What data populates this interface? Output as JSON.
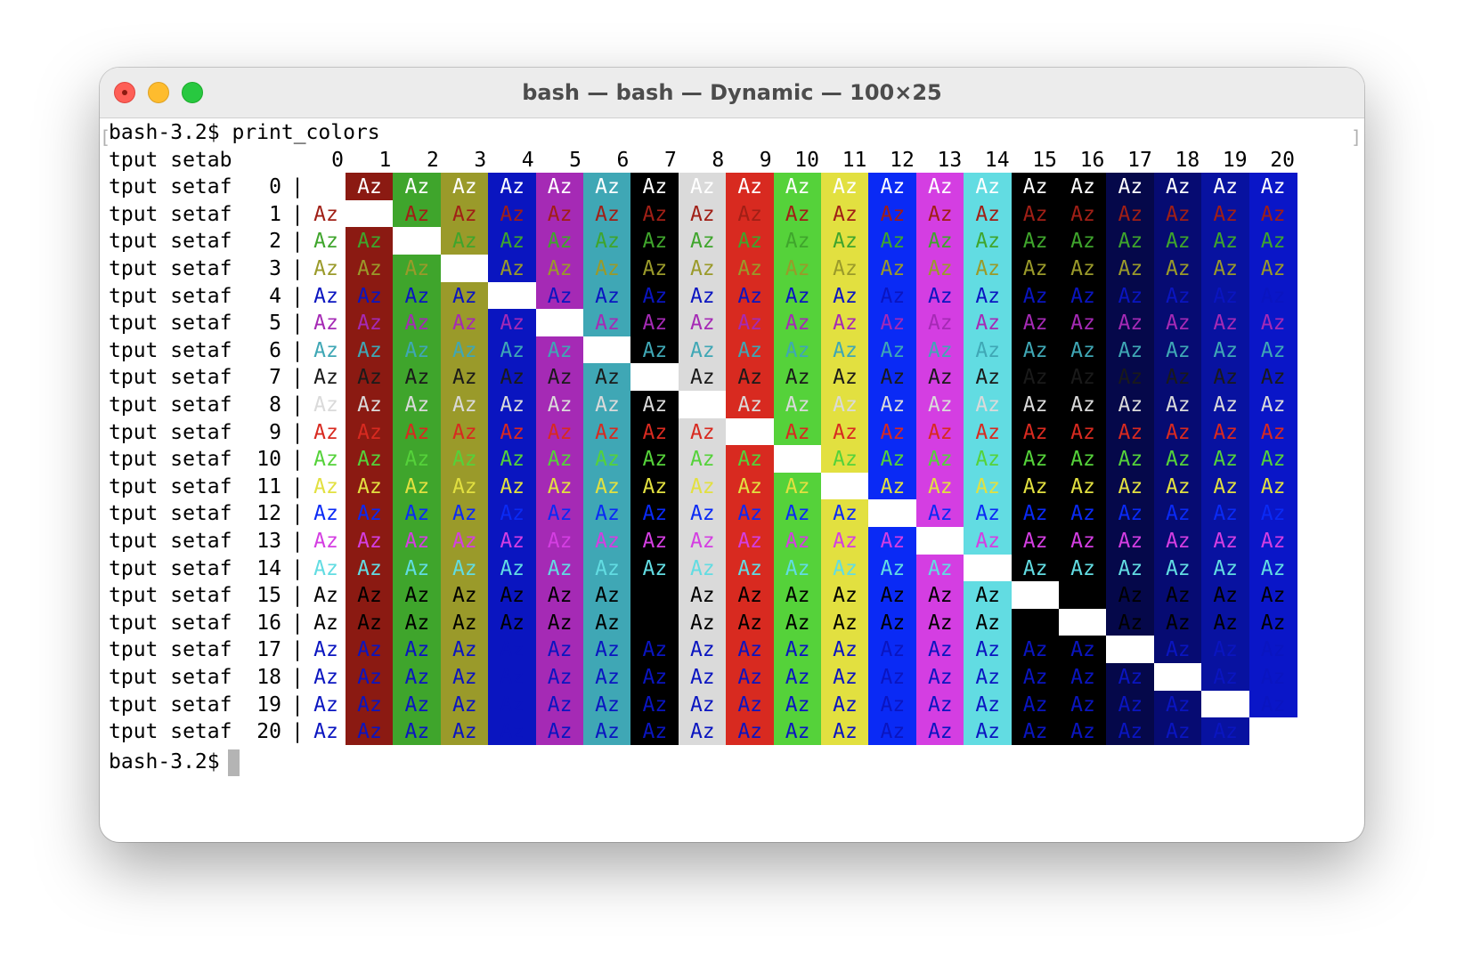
{
  "window": {
    "title": "bash — bash — Dynamic — 100×25"
  },
  "terminal": {
    "prompt_line": "bash-3.2$ print_colors",
    "final_prompt": "bash-3.2$ ",
    "header_label": "tput setab",
    "row_label": "tput setaf",
    "separator": "|",
    "sample_text": "Az",
    "column_headers": [
      "0",
      "1",
      "2",
      "3",
      "4",
      "5",
      "6",
      "7",
      "8",
      "9",
      "10",
      "11",
      "12",
      "13",
      "14",
      "15",
      "16",
      "17",
      "18",
      "19",
      "20"
    ],
    "row_numbers": [
      "0",
      "1",
      "2",
      "3",
      "4",
      "5",
      "6",
      "7",
      "8",
      "9",
      "10",
      "11",
      "12",
      "13",
      "14",
      "15",
      "16",
      "17",
      "18",
      "19",
      "20"
    ]
  },
  "palette": {
    "0": "#ffffff",
    "1": "#8b1a12",
    "2": "#3fa52c",
    "3": "#9a9a2a",
    "4": "#0a15c0",
    "5": "#a52ab5",
    "6": "#3fa7b5",
    "7": "#000000",
    "8": "#dadada",
    "9": "#d82a20",
    "10": "#55d23a",
    "11": "#e2e040",
    "12": "#0a2af5",
    "13": "#d43ee2",
    "14": "#62dce2",
    "15": "#000000",
    "16": "#000000",
    "17": "#05084a",
    "18": "#060b72",
    "19": "#0812a0",
    "20": "#0a16c8"
  },
  "foreground_palette": {
    "0": "#ffffff",
    "1": "#a01f16",
    "2": "#3fa52c",
    "3": "#9a9a2a",
    "4": "#0a15c0",
    "5": "#a52ab5",
    "6": "#3fa7b5",
    "7": "#1a1a1a",
    "8": "#dadada",
    "9": "#d82a20",
    "10": "#55d23a",
    "11": "#e2e040",
    "12": "#0a2af5",
    "13": "#d43ee2",
    "14": "#62dce2",
    "15": "#000000",
    "16": "#000000",
    "17": "#0a15c0",
    "18": "#0a15c0",
    "19": "#0a15c0",
    "20": "#0a15c0"
  }
}
